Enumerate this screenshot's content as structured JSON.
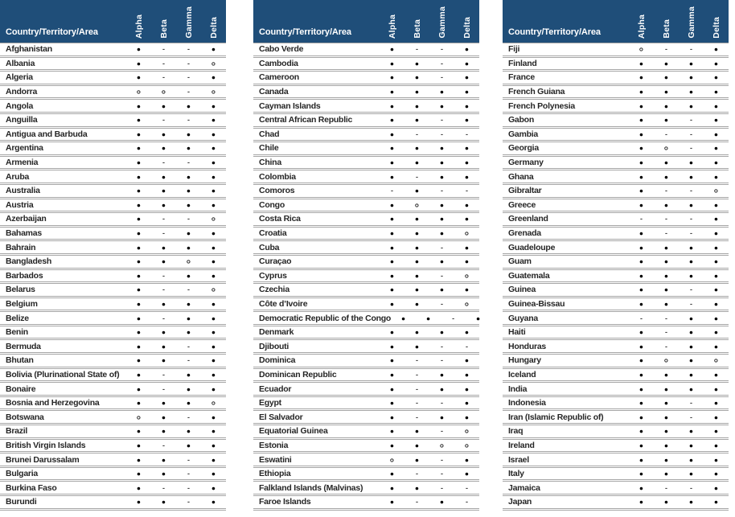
{
  "row_header": "Country/Territory/Area",
  "columns": [
    "Alpha",
    "Beta",
    "Gamma",
    "Delta"
  ],
  "symbols": {
    "filled": "●",
    "open": "○",
    "dash": "-"
  },
  "colors": {
    "header_bg": "#1F4E79",
    "header_text": "#FFFFFF",
    "row_text": "#262626",
    "border": "#A6A6A6"
  },
  "tables": [
    {
      "rows": [
        {
          "name": "Afghanistan",
          "values": [
            "●",
            "-",
            "-",
            "●"
          ]
        },
        {
          "name": "Albania",
          "values": [
            "●",
            "-",
            "-",
            "○"
          ]
        },
        {
          "name": "Algeria",
          "values": [
            "●",
            "-",
            "-",
            "●"
          ]
        },
        {
          "name": "Andorra",
          "values": [
            "○",
            "○",
            "-",
            "○"
          ]
        },
        {
          "name": "Angola",
          "values": [
            "●",
            "●",
            "●",
            "●"
          ]
        },
        {
          "name": "Anguilla",
          "values": [
            "●",
            "-",
            "-",
            "●"
          ]
        },
        {
          "name": "Antigua and Barbuda",
          "values": [
            "●",
            "●",
            "●",
            "●"
          ]
        },
        {
          "name": "Argentina",
          "values": [
            "●",
            "●",
            "●",
            "●"
          ]
        },
        {
          "name": "Armenia",
          "values": [
            "●",
            "-",
            "-",
            "●"
          ]
        },
        {
          "name": "Aruba",
          "values": [
            "●",
            "●",
            "●",
            "●"
          ]
        },
        {
          "name": "Australia",
          "values": [
            "●",
            "●",
            "●",
            "●"
          ]
        },
        {
          "name": "Austria",
          "values": [
            "●",
            "●",
            "●",
            "●"
          ]
        },
        {
          "name": "Azerbaijan",
          "values": [
            "●",
            "-",
            "-",
            "○"
          ]
        },
        {
          "name": "Bahamas",
          "values": [
            "●",
            "-",
            "●",
            "●"
          ]
        },
        {
          "name": "Bahrain",
          "values": [
            "●",
            "●",
            "●",
            "●"
          ]
        },
        {
          "name": "Bangladesh",
          "values": [
            "●",
            "●",
            "○",
            "●"
          ]
        },
        {
          "name": "Barbados",
          "values": [
            "●",
            "-",
            "●",
            "●"
          ]
        },
        {
          "name": "Belarus",
          "values": [
            "●",
            "-",
            "-",
            "○"
          ]
        },
        {
          "name": "Belgium",
          "values": [
            "●",
            "●",
            "●",
            "●"
          ]
        },
        {
          "name": "Belize",
          "values": [
            "●",
            "-",
            "●",
            "●"
          ]
        },
        {
          "name": "Benin",
          "values": [
            "●",
            "●",
            "●",
            "●"
          ]
        },
        {
          "name": "Bermuda",
          "values": [
            "●",
            "●",
            "-",
            "●"
          ]
        },
        {
          "name": "Bhutan",
          "values": [
            "●",
            "●",
            "-",
            "●"
          ]
        },
        {
          "name": "Bolivia (Plurinational State of)",
          "values": [
            "●",
            "-",
            "●",
            "●"
          ]
        },
        {
          "name": "Bonaire",
          "values": [
            "●",
            "-",
            "●",
            "●"
          ]
        },
        {
          "name": "Bosnia and Herzegovina",
          "values": [
            "●",
            "●",
            "●",
            "○"
          ]
        },
        {
          "name": "Botswana",
          "values": [
            "○",
            "●",
            "-",
            "●"
          ]
        },
        {
          "name": "Brazil",
          "values": [
            "●",
            "●",
            "●",
            "●"
          ]
        },
        {
          "name": "British Virgin Islands",
          "values": [
            "●",
            "-",
            "●",
            "●"
          ]
        },
        {
          "name": "Brunei Darussalam",
          "values": [
            "●",
            "●",
            "-",
            "●"
          ]
        },
        {
          "name": "Bulgaria",
          "values": [
            "●",
            "●",
            "-",
            "●"
          ]
        },
        {
          "name": "Burkina Faso",
          "values": [
            "●",
            "-",
            "-",
            "●"
          ]
        },
        {
          "name": "Burundi",
          "values": [
            "●",
            "●",
            "-",
            "●"
          ]
        }
      ]
    },
    {
      "rows": [
        {
          "name": "Cabo Verde",
          "values": [
            "●",
            "-",
            "-",
            "●"
          ]
        },
        {
          "name": "Cambodia",
          "values": [
            "●",
            "●",
            "-",
            "●"
          ]
        },
        {
          "name": "Cameroon",
          "values": [
            "●",
            "●",
            "-",
            "●"
          ]
        },
        {
          "name": "Canada",
          "values": [
            "●",
            "●",
            "●",
            "●"
          ]
        },
        {
          "name": "Cayman Islands",
          "values": [
            "●",
            "●",
            "●",
            "●"
          ]
        },
        {
          "name": "Central African Republic",
          "values": [
            "●",
            "●",
            "-",
            "●"
          ]
        },
        {
          "name": "Chad",
          "values": [
            "●",
            "-",
            "-",
            "-"
          ]
        },
        {
          "name": "Chile",
          "values": [
            "●",
            "●",
            "●",
            "●"
          ]
        },
        {
          "name": "China",
          "values": [
            "●",
            "●",
            "●",
            "●"
          ]
        },
        {
          "name": "Colombia",
          "values": [
            "●",
            "-",
            "●",
            "●"
          ]
        },
        {
          "name": "Comoros",
          "values": [
            "-",
            "●",
            "-",
            "-"
          ]
        },
        {
          "name": "Congo",
          "values": [
            "●",
            "○",
            "●",
            "●"
          ]
        },
        {
          "name": "Costa Rica",
          "values": [
            "●",
            "●",
            "●",
            "●"
          ]
        },
        {
          "name": "Croatia",
          "values": [
            "●",
            "●",
            "●",
            "○"
          ]
        },
        {
          "name": "Cuba",
          "values": [
            "●",
            "●",
            "-",
            "●"
          ]
        },
        {
          "name": "Curaçao",
          "values": [
            "●",
            "●",
            "●",
            "●"
          ]
        },
        {
          "name": "Cyprus",
          "values": [
            "●",
            "●",
            "-",
            "○"
          ]
        },
        {
          "name": "Czechia",
          "values": [
            "●",
            "●",
            "●",
            "●"
          ]
        },
        {
          "name": "Côte d’Ivoire",
          "values": [
            "●",
            "●",
            "-",
            "○"
          ]
        },
        {
          "name": "Democratic Republic of the Congo",
          "values": [
            "●",
            "●",
            "-",
            "●"
          ]
        },
        {
          "name": "Denmark",
          "values": [
            "●",
            "●",
            "●",
            "●"
          ]
        },
        {
          "name": "Djibouti",
          "values": [
            "●",
            "●",
            "-",
            "-"
          ]
        },
        {
          "name": "Dominica",
          "values": [
            "●",
            "-",
            "-",
            "●"
          ]
        },
        {
          "name": "Dominican Republic",
          "values": [
            "●",
            "-",
            "●",
            "●"
          ]
        },
        {
          "name": "Ecuador",
          "values": [
            "●",
            "-",
            "●",
            "●"
          ]
        },
        {
          "name": "Egypt",
          "values": [
            "●",
            "-",
            "-",
            "●"
          ]
        },
        {
          "name": "El Salvador",
          "values": [
            "●",
            "-",
            "●",
            "●"
          ]
        },
        {
          "name": "Equatorial Guinea",
          "values": [
            "●",
            "●",
            "-",
            "○"
          ]
        },
        {
          "name": "Estonia",
          "values": [
            "●",
            "●",
            "○",
            "○"
          ]
        },
        {
          "name": "Eswatini",
          "values": [
            "○",
            "●",
            "-",
            "●"
          ]
        },
        {
          "name": "Ethiopia",
          "values": [
            "●",
            "-",
            "-",
            "●"
          ]
        },
        {
          "name": "Falkland Islands (Malvinas)",
          "values": [
            "●",
            "●",
            "-",
            "-"
          ]
        },
        {
          "name": "Faroe Islands",
          "values": [
            "●",
            "-",
            "●",
            "-"
          ]
        }
      ]
    },
    {
      "rows": [
        {
          "name": "Fiji",
          "values": [
            "○",
            "-",
            "-",
            "●"
          ]
        },
        {
          "name": "Finland",
          "values": [
            "●",
            "●",
            "●",
            "●"
          ]
        },
        {
          "name": "France",
          "values": [
            "●",
            "●",
            "●",
            "●"
          ]
        },
        {
          "name": "French Guiana",
          "values": [
            "●",
            "●",
            "●",
            "●"
          ]
        },
        {
          "name": "French Polynesia",
          "values": [
            "●",
            "●",
            "●",
            "●"
          ]
        },
        {
          "name": "Gabon",
          "values": [
            "●",
            "●",
            "-",
            "●"
          ]
        },
        {
          "name": "Gambia",
          "values": [
            "●",
            "-",
            "-",
            "●"
          ]
        },
        {
          "name": "Georgia",
          "values": [
            "●",
            "○",
            "-",
            "●"
          ]
        },
        {
          "name": "Germany",
          "values": [
            "●",
            "●",
            "●",
            "●"
          ]
        },
        {
          "name": "Ghana",
          "values": [
            "●",
            "●",
            "●",
            "●"
          ]
        },
        {
          "name": "Gibraltar",
          "values": [
            "●",
            "-",
            "-",
            "○"
          ]
        },
        {
          "name": "Greece",
          "values": [
            "●",
            "●",
            "●",
            "●"
          ]
        },
        {
          "name": "Greenland",
          "values": [
            "-",
            "-",
            "-",
            "●"
          ]
        },
        {
          "name": "Grenada",
          "values": [
            "●",
            "-",
            "-",
            "●"
          ]
        },
        {
          "name": "Guadeloupe",
          "values": [
            "●",
            "●",
            "●",
            "●"
          ]
        },
        {
          "name": "Guam",
          "values": [
            "●",
            "●",
            "●",
            "●"
          ]
        },
        {
          "name": "Guatemala",
          "values": [
            "●",
            "●",
            "●",
            "●"
          ]
        },
        {
          "name": "Guinea",
          "values": [
            "●",
            "●",
            "-",
            "●"
          ]
        },
        {
          "name": "Guinea-Bissau",
          "values": [
            "●",
            "●",
            "-",
            "●"
          ]
        },
        {
          "name": "Guyana",
          "values": [
            "-",
            "-",
            "●",
            "●"
          ]
        },
        {
          "name": "Haiti",
          "values": [
            "●",
            "-",
            "●",
            "●"
          ]
        },
        {
          "name": "Honduras",
          "values": [
            "●",
            "-",
            "●",
            "●"
          ]
        },
        {
          "name": "Hungary",
          "values": [
            "●",
            "○",
            "●",
            "○"
          ]
        },
        {
          "name": "Iceland",
          "values": [
            "●",
            "●",
            "●",
            "●"
          ]
        },
        {
          "name": "India",
          "values": [
            "●",
            "●",
            "●",
            "●"
          ]
        },
        {
          "name": "Indonesia",
          "values": [
            "●",
            "●",
            "-",
            "●"
          ]
        },
        {
          "name": "Iran (Islamic Republic of)",
          "values": [
            "●",
            "●",
            "-",
            "●"
          ]
        },
        {
          "name": "Iraq",
          "values": [
            "●",
            "●",
            "●",
            "●"
          ]
        },
        {
          "name": "Ireland",
          "values": [
            "●",
            "●",
            "●",
            "●"
          ]
        },
        {
          "name": "Israel",
          "values": [
            "●",
            "●",
            "●",
            "●"
          ]
        },
        {
          "name": "Italy",
          "values": [
            "●",
            "●",
            "●",
            "●"
          ]
        },
        {
          "name": "Jamaica",
          "values": [
            "●",
            "-",
            "-",
            "●"
          ]
        },
        {
          "name": "Japan",
          "values": [
            "●",
            "●",
            "●",
            "●"
          ]
        }
      ]
    }
  ]
}
